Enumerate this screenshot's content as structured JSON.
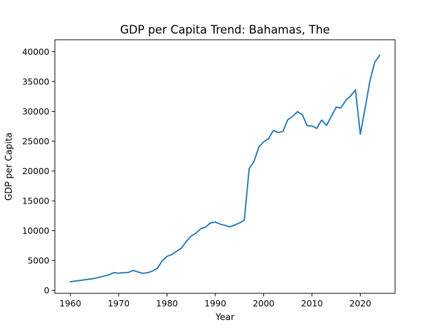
{
  "chart_data": {
    "type": "line",
    "title": "GDP per Capita Trend: Bahamas, The",
    "xlabel": "Year",
    "ylabel": "GDP per Capita",
    "xlim": [
      1956.8,
      2027.2
    ],
    "ylim": [
      -500,
      42000
    ],
    "grid": false,
    "xticks": [
      1960,
      1970,
      1980,
      1990,
      2000,
      2010,
      2020
    ],
    "yticks": [
      0,
      5000,
      10000,
      15000,
      20000,
      25000,
      30000,
      35000,
      40000
    ],
    "series": [
      {
        "color": "#1f77b4",
        "x": [
          1960,
          1961,
          1962,
          1963,
          1964,
          1965,
          1966,
          1967,
          1968,
          1969,
          1970,
          1971,
          1972,
          1973,
          1974,
          1975,
          1976,
          1977,
          1978,
          1979,
          1980,
          1981,
          1982,
          1983,
          1984,
          1985,
          1986,
          1987,
          1988,
          1989,
          1990,
          1991,
          1992,
          1993,
          1994,
          1995,
          1996,
          1997,
          1998,
          1999,
          2000,
          2001,
          2002,
          2003,
          2004,
          2005,
          2006,
          2007,
          2008,
          2009,
          2010,
          2011,
          2012,
          2013,
          2014,
          2015,
          2016,
          2017,
          2018,
          2019,
          2020,
          2021,
          2022,
          2023,
          2024
        ],
        "y": [
          1450,
          1560,
          1660,
          1770,
          1890,
          2000,
          2200,
          2400,
          2600,
          2980,
          2880,
          2970,
          3000,
          3350,
          3080,
          2850,
          2960,
          3230,
          3700,
          4950,
          5700,
          6000,
          6550,
          7100,
          8200,
          9100,
          9600,
          10350,
          10600,
          11300,
          11450,
          11100,
          10900,
          10650,
          10950,
          11300,
          11750,
          20400,
          21600,
          24000,
          24900,
          25400,
          26800,
          26450,
          26650,
          28600,
          29150,
          29950,
          29450,
          27600,
          27550,
          27150,
          28550,
          27650,
          29150,
          30700,
          30600,
          31850,
          32600,
          33600,
          26150,
          30550,
          35150,
          38250,
          39400
        ]
      }
    ]
  }
}
